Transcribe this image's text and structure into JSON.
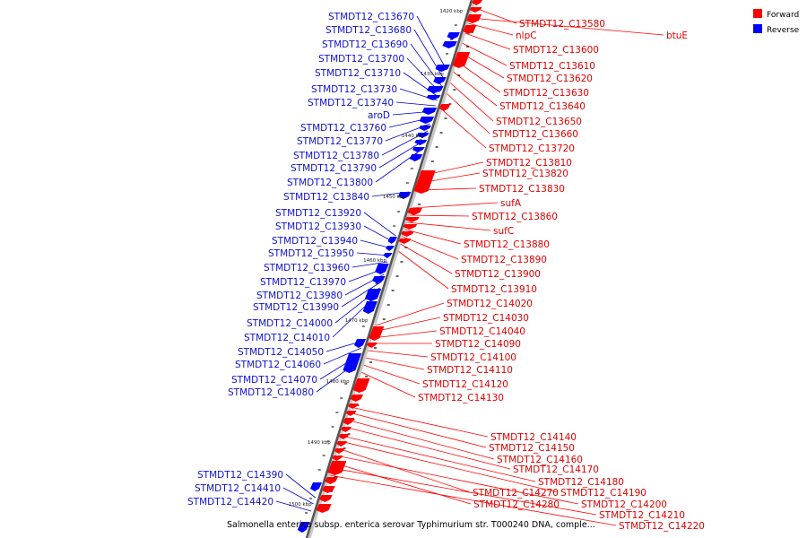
{
  "caption": "Salmonella enterica subsp. enterica serovar Typhimurium str. T000240 DNA, comple...",
  "legend": [
    {
      "label": "Forward",
      "color": "#ff0000"
    },
    {
      "label": "Reverse",
      "color": "#0000ff"
    }
  ],
  "colors": {
    "forward": "#ff0000",
    "reverse": "#0000ff",
    "forward_line": "#ff0000",
    "reverse_line": "#0000cc"
  },
  "ticks": [
    "1420 kbp",
    "1430 kbp",
    "1440 kbp",
    "1450 kbp",
    "1460 kbp",
    "1470 kbp",
    "1480 kbp",
    "1490 kbp",
    "1500 kbp"
  ],
  "reverse_labels": [
    "STMDT12_C13670",
    "STMDT12_C13680",
    "STMDT12_C13690",
    "STMDT12_C13700",
    "STMDT12_C13710",
    "STMDT12_C13730",
    "STMDT12_C13740",
    "aroD",
    "STMDT12_C13760",
    "STMDT12_C13770",
    "STMDT12_C13780",
    "STMDT12_C13790",
    "STMDT12_C13800",
    "STMDT12_C13840",
    "STMDT12_C13920",
    "STMDT12_C13930",
    "STMDT12_C13940",
    "STMDT12_C13950",
    "STMDT12_C13960",
    "STMDT12_C13970",
    "STMDT12_C13980",
    "STMDT12_C13990",
    "STMDT12_C14000",
    "STMDT12_C14010",
    "STMDT12_C14050",
    "STMDT12_C14060",
    "STMDT12_C14070",
    "STMDT12_C14080",
    "STMDT12_C14390",
    "STMDT12_C14410",
    "STMDT12_C14420"
  ],
  "forward_labels": [
    "STMDT12_C13580",
    "btuE",
    "nlpC",
    "STMDT12_C13600",
    "STMDT12_C13610",
    "STMDT12_C13620",
    "STMDT12_C13630",
    "STMDT12_C13640",
    "STMDT12_C13650",
    "STMDT12_C13660",
    "STMDT12_C13720",
    "STMDT12_C13810",
    "STMDT12_C13820",
    "STMDT12_C13830",
    "sufA",
    "STMDT12_C13860",
    "sufC",
    "STMDT12_C13880",
    "STMDT12_C13890",
    "STMDT12_C13900",
    "STMDT12_C13910",
    "STMDT12_C14020",
    "STMDT12_C14030",
    "STMDT12_C14040",
    "STMDT12_C14090",
    "STMDT12_C14100",
    "STMDT12_C14110",
    "STMDT12_C14120",
    "STMDT12_C14130",
    "STMDT12_C14140",
    "STMDT12_C14150",
    "STMDT12_C14160",
    "STMDT12_C14170",
    "STMDT12_C14180",
    "STMDT12_C14190",
    "STMDT12_C14270",
    "STMDT12_C14200",
    "STMDT12_C14280",
    "STMDT12_C14210",
    "STMDT12_C14220"
  ]
}
